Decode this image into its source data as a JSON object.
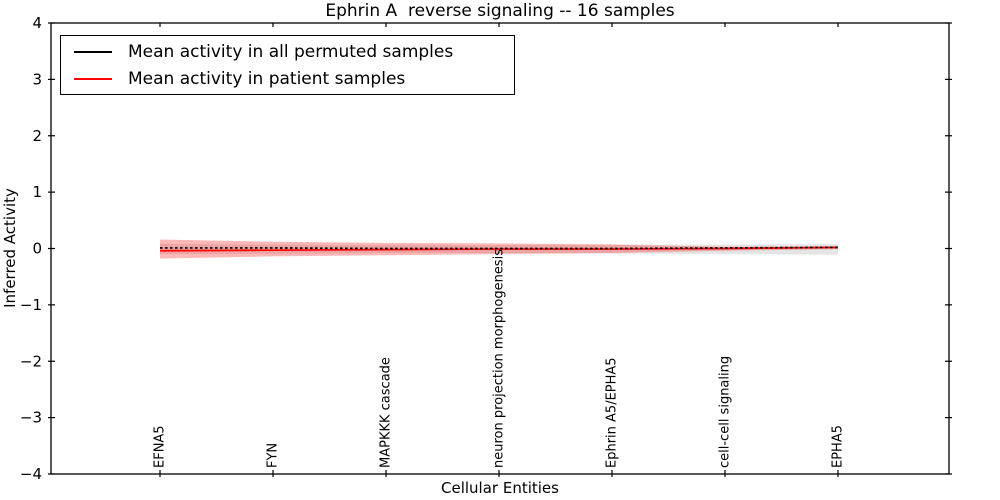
{
  "figure": {
    "background": "#ffffff"
  },
  "chart_data": {
    "type": "line",
    "title": "Ephrin A  reverse signaling -- 16 samples",
    "xlabel": "Cellular Entities",
    "ylabel": "Inferred Activity",
    "ylim": [
      -4,
      4
    ],
    "yticks": [
      4,
      3,
      2,
      1,
      0,
      -1,
      -2,
      -3,
      -4
    ],
    "ytick_labels": [
      "4",
      "3",
      "2",
      "1",
      "0",
      "−1",
      "−2",
      "−3",
      "−4"
    ],
    "categories": [
      "EFNA5",
      "FYN",
      "MAPKKK cascade",
      "neuron projection morphogenesis",
      "Ephrin A5/EPHA5",
      "cell-cell signaling",
      "EPHA5"
    ],
    "grid": false,
    "legend_position": "upper left",
    "series": [
      {
        "name": "Mean activity in all permuted samples",
        "color": "#000000",
        "style": "dashed",
        "values": [
          0.01,
          0.01,
          0.0,
          0.0,
          0.0,
          0.01,
          0.02
        ]
      },
      {
        "name": "Mean activity in patient samples",
        "color": "#ff0000",
        "style": "solid",
        "values": [
          -0.04,
          -0.03,
          -0.02,
          -0.01,
          -0.01,
          0.0,
          0.02
        ]
      }
    ],
    "bands": [
      {
        "name": "permuted-std-band",
        "color": "rgba(150,150,150,0.25)",
        "upper": [
          0.08,
          0.07,
          0.06,
          0.06,
          0.07,
          0.07,
          0.08
        ],
        "lower": [
          -0.1,
          -0.09,
          -0.08,
          -0.08,
          -0.09,
          -0.1,
          -0.11
        ]
      },
      {
        "name": "patient-std-band",
        "color": "rgba(255,0,0,0.28)",
        "upper": [
          0.16,
          0.12,
          0.1,
          0.09,
          0.07,
          0.03,
          0.04
        ],
        "lower": [
          -0.18,
          -0.14,
          -0.12,
          -0.1,
          -0.08,
          -0.04,
          -0.01
        ]
      }
    ]
  }
}
